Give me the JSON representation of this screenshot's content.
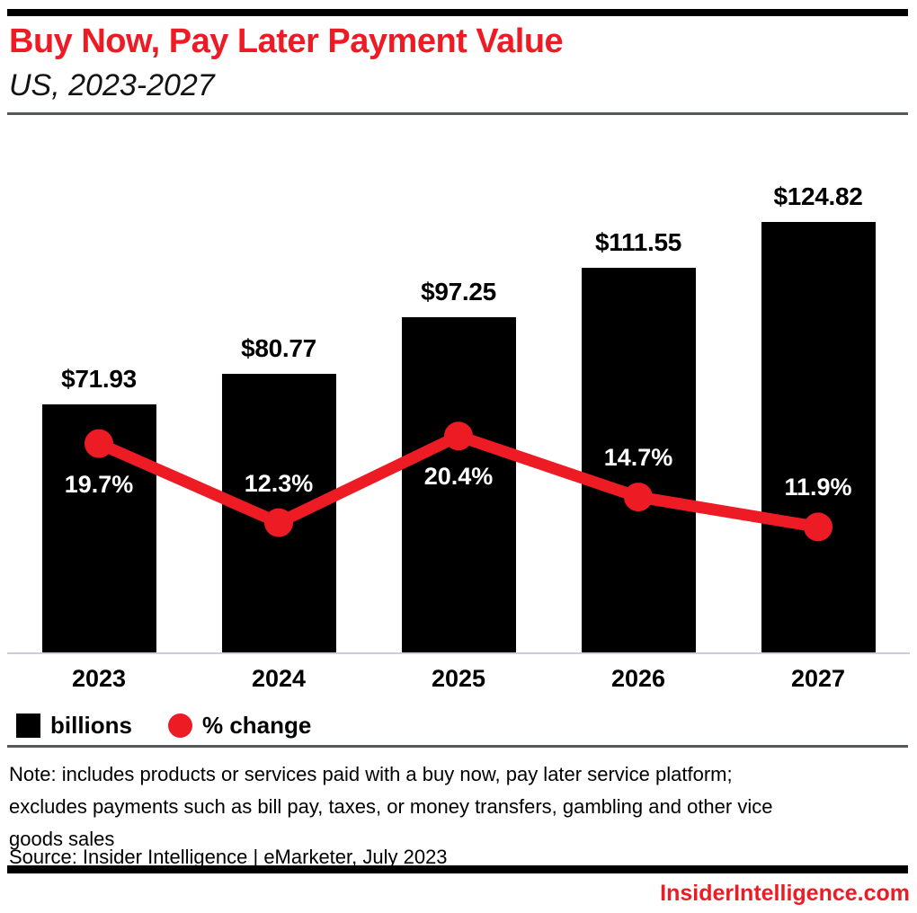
{
  "page": {
    "title": "Buy Now, Pay Later Payment Value",
    "subtitle": "US, 2023-2027"
  },
  "chart_data": {
    "type": "bar",
    "combo": "bar+line",
    "title": "Buy Now, Pay Later Payment Value",
    "subtitle": "US, 2023-2027",
    "categories": [
      "2023",
      "2024",
      "2025",
      "2026",
      "2027"
    ],
    "series": [
      {
        "name": "billions",
        "type": "bar",
        "unit": "US$ billions",
        "values": [
          71.93,
          80.77,
          97.25,
          111.55,
          124.82
        ],
        "labels": [
          "$71.93",
          "$80.77",
          "$97.25",
          "$111.55",
          "$124.82"
        ],
        "color": "#000000"
      },
      {
        "name": "% change",
        "type": "line",
        "unit": "percent",
        "values": [
          19.7,
          12.3,
          20.4,
          14.7,
          11.9
        ],
        "labels": [
          "19.7%",
          "12.3%",
          "20.4%",
          "14.7%",
          "11.9%"
        ],
        "label_placement": [
          "below-marker",
          "above-marker",
          "below-marker",
          "above-marker",
          "above-marker"
        ],
        "color": "#ed1c24"
      }
    ],
    "xlabel": "",
    "ylabel": "",
    "bar_axis_range": [
      0,
      130
    ],
    "grid": false,
    "legend_position": "bottom-left"
  },
  "legend": {
    "items": [
      {
        "label": "billions",
        "swatch": "square",
        "color": "#000000"
      },
      {
        "label": "% change",
        "swatch": "circle",
        "color": "#ed1c24"
      }
    ]
  },
  "footnote": {
    "note_lines": [
      "Note: includes products or services paid with a buy now, pay later service platform;",
      "excludes payments such as bill pay, taxes, or money transfers, gambling and other vice",
      "goods sales"
    ],
    "source": "Source: Insider Intelligence | eMarketer, July 2023"
  },
  "footer": {
    "website": "InsiderIntelligence.com"
  },
  "colors": {
    "accent_red": "#ed1c24",
    "bar_black": "#000000",
    "axis_line": "#c9cfe0",
    "divider_gray": "#58595b",
    "pct_label_text": "#ffffff"
  }
}
